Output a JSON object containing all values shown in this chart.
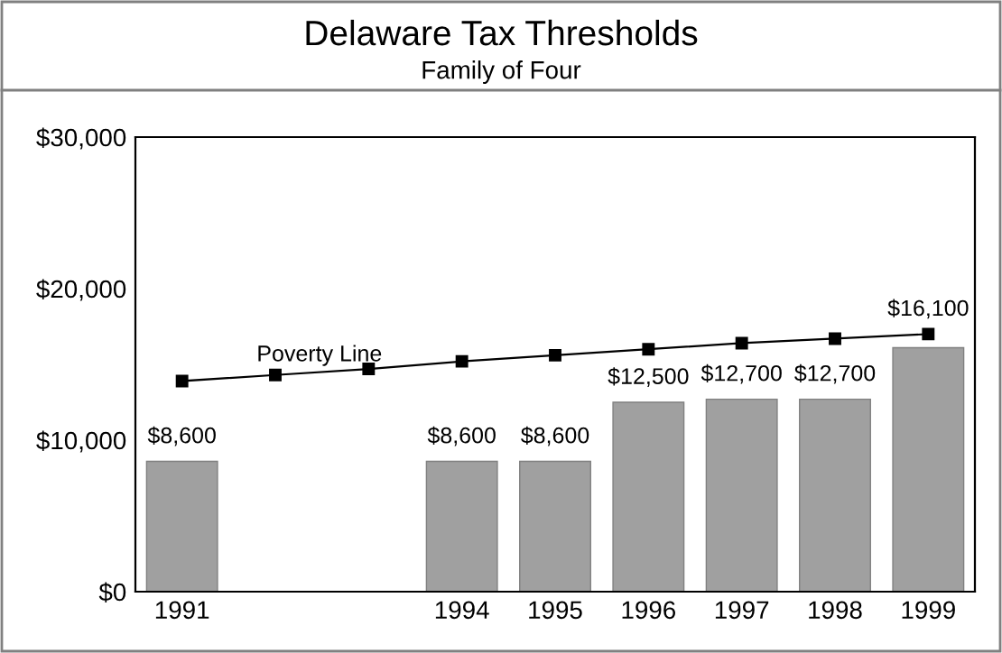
{
  "chart_data": {
    "type": "bar",
    "title": "Delaware Tax Thresholds",
    "subtitle": "Family of Four",
    "categories": [
      "1991",
      null,
      null,
      "1994",
      "1995",
      "1996",
      "1997",
      "1998",
      "1999"
    ],
    "series": [
      {
        "name": null,
        "color": "#a0a0a0",
        "values": [
          8600,
          null,
          null,
          8600,
          8600,
          12500,
          12700,
          12700,
          16100
        ],
        "value_labels": [
          "$8,600",
          null,
          null,
          "$8,600",
          "$8,600",
          "$12,500",
          "$12,700",
          "$12,700",
          "$16,100"
        ]
      },
      {
        "name": "Poverty Line",
        "type": "line",
        "color": "#000000",
        "marker": "square",
        "values": [
          13900,
          14300,
          14700,
          15200,
          15600,
          16000,
          16400,
          16700,
          17000
        ]
      }
    ],
    "ylim": [
      0,
      30000
    ],
    "yticks": [
      {
        "value": 0,
        "label": "$0"
      },
      {
        "value": 10000,
        "label": "$10,000"
      },
      {
        "value": 20000,
        "label": "$20,000"
      },
      {
        "value": 30000,
        "label": "$30,000"
      }
    ],
    "grid": false,
    "legend": false
  }
}
